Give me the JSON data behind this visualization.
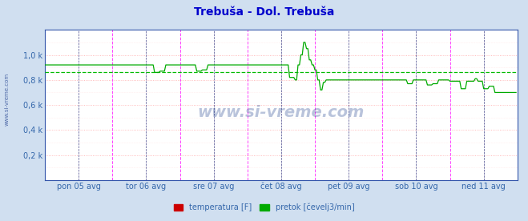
{
  "title": "Trebuša - Dol. Trebuša",
  "title_color": "#0000cc",
  "background_color": "#d0dff0",
  "plot_bg_color": "#ffffff",
  "grid_color_major": "#ffaaaa",
  "grid_color_minor": "#ffdddd",
  "ylabel_color": "#3366aa",
  "xlabel_color": "#3366aa",
  "watermark": "www.si-vreme.com",
  "watermark_color": "#1a3a8a",
  "ylim": [
    0,
    1200
  ],
  "ytick_vals": [
    0,
    200,
    400,
    600,
    800,
    1000
  ],
  "ytick_labels": [
    "",
    "0,2 k",
    "0,4 k",
    "0,6 k",
    "0,8 k",
    "1,0 k"
  ],
  "xtick_labels": [
    "pon 05 avg",
    "tor 06 avg",
    "sre 07 avg",
    "čet 08 avg",
    "pet 09 avg",
    "sob 10 avg",
    "ned 11 avg"
  ],
  "vline_color_magenta": "#ff44ff",
  "vline_color_darkblue": "#444488",
  "temp_color": "#cc0000",
  "flow_color": "#00aa00",
  "avg_line_color": "#00bb00",
  "legend_labels": [
    "temperatura [F]",
    "pretok [čevelj3/min]"
  ],
  "legend_colors": [
    "#cc0000",
    "#00aa00"
  ],
  "n_points": 336,
  "flow_avg": 860,
  "temp_base": 2,
  "left_label": "www.si-vreme.com"
}
